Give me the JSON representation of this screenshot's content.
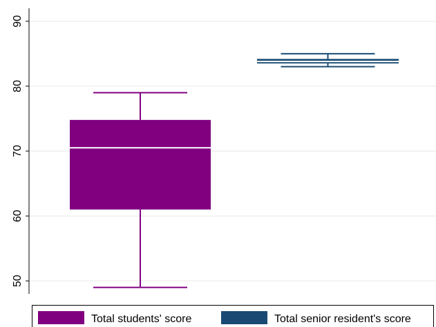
{
  "chart_data": {
    "type": "box",
    "title": "",
    "xlabel": "",
    "ylabel": "",
    "ylim": [
      48,
      92
    ],
    "yticks": [
      50,
      60,
      70,
      80,
      90
    ],
    "grid": true,
    "legend_position": "bottom",
    "series": [
      {
        "name": "Total students' score",
        "color": "#800080",
        "min": 49,
        "q1": 61,
        "median": 70.5,
        "q3": 74.8,
        "max": 79
      },
      {
        "name": "Total senior resident's score",
        "color": "#1a4a73",
        "min": 83,
        "q1": 83.5,
        "median": 83.8,
        "q3": 84.2,
        "max": 85
      }
    ]
  }
}
